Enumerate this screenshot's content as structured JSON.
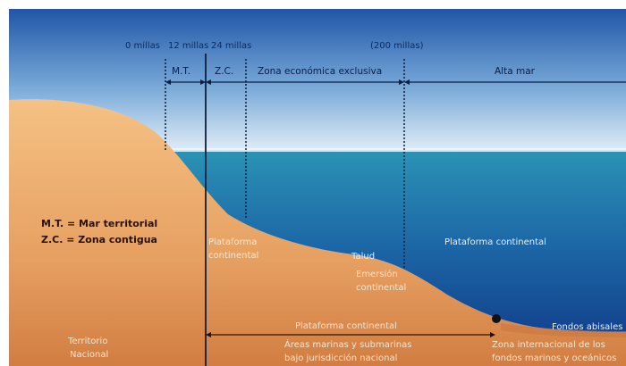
{
  "distances": {
    "zero": "0 millas",
    "twelve": "12 millas",
    "twentyfour": "24 millas",
    "two_hundred": "(200 millas)"
  },
  "zones": {
    "mt": "M.T.",
    "zc": "Z.C.",
    "zee": "Zona económica exclusiva",
    "alta_mar": "Alta mar"
  },
  "legend": {
    "line1": "M.T. = Mar territorial",
    "line2": "Z.C. = Zona contigua"
  },
  "seabed": {
    "plataforma_izq_1": "Plataforma",
    "plataforma_izq_2": "continental",
    "talud": "Talud",
    "emersion_1": "Emersión",
    "emersion_2": "continental",
    "plataforma_der": "Plataforma continental",
    "fondos": "Fondos abisales"
  },
  "bottom": {
    "plataforma": "Plataforma continental",
    "areas_1": "Áreas marinas y submarinas",
    "areas_2": "bajo jurisdicción nacional",
    "territorio_1": "Territorio",
    "territorio_2": "Nacional",
    "zona_int_1": "Zona internacional de los",
    "zona_int_2": "fondos marinos y oceánicos"
  },
  "colors": {
    "sky_top": "#2b63b4",
    "sky_bottom": "#d6e7f5",
    "sea_top": "#2a8fb3",
    "sea_deep": "#123f8e",
    "land_light": "#f2b678",
    "land_dark": "#d9874a"
  }
}
